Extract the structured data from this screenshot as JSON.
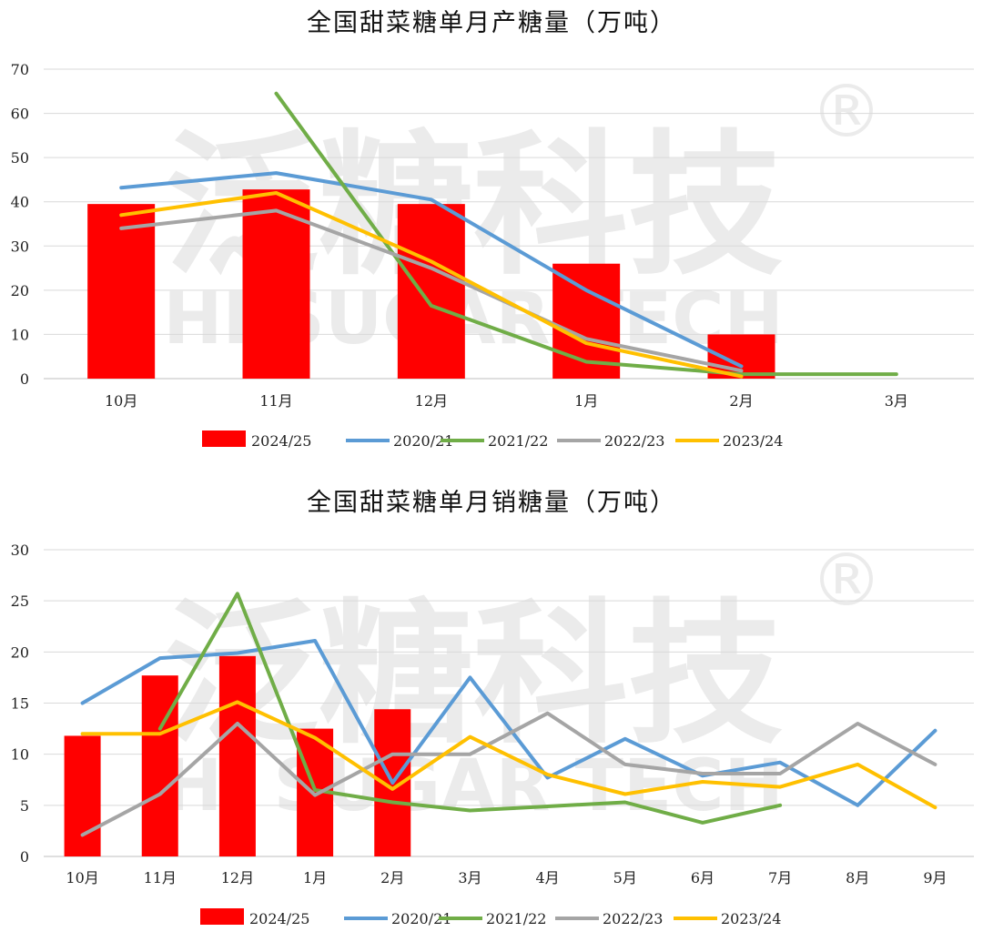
{
  "watermark": {
    "cn": "泛糖科技",
    "en": "HI SUGAR TECH",
    "mark": "®"
  },
  "chart_data": [
    {
      "type": "bar+line",
      "title": "全国甜菜糖单月产糖量（万吨）",
      "categories": [
        "10月",
        "11月",
        "12月",
        "1月",
        "2月",
        "3月"
      ],
      "ylim": [
        0,
        70
      ],
      "yticks": [
        0,
        10,
        20,
        30,
        40,
        50,
        60,
        70
      ],
      "grid": true,
      "legend": "bottom",
      "series": [
        {
          "name": "2024/25",
          "kind": "bar",
          "color": "#ff0000",
          "values": [
            39.5,
            42.8,
            39.5,
            26.0,
            10.0,
            null
          ]
        },
        {
          "name": "2020/21",
          "kind": "line",
          "color": "#5b9bd5",
          "values": [
            43.2,
            46.5,
            40.5,
            20.0,
            2.8,
            null
          ]
        },
        {
          "name": "2021/22",
          "kind": "line",
          "color": "#70ad47",
          "values": [
            null,
            64.5,
            16.5,
            3.8,
            1.0,
            1.0
          ]
        },
        {
          "name": "2022/23",
          "kind": "line",
          "color": "#a5a5a5",
          "values": [
            34.0,
            38.0,
            25.0,
            9.0,
            1.8,
            null
          ]
        },
        {
          "name": "2023/24",
          "kind": "line",
          "color": "#ffc000",
          "values": [
            37.0,
            42.0,
            26.5,
            8.0,
            0.5,
            null
          ]
        }
      ]
    },
    {
      "type": "bar+line",
      "title": "全国甜菜糖单月销糖量（万吨）",
      "categories": [
        "10月",
        "11月",
        "12月",
        "1月",
        "2月",
        "3月",
        "4月",
        "5月",
        "6月",
        "7月",
        "8月",
        "9月"
      ],
      "ylim": [
        0,
        30
      ],
      "yticks": [
        0,
        5,
        10,
        15,
        20,
        25,
        30
      ],
      "grid": true,
      "legend": "bottom",
      "series": [
        {
          "name": "2024/25",
          "kind": "bar",
          "color": "#ff0000",
          "values": [
            11.8,
            17.7,
            19.6,
            12.5,
            14.4,
            null,
            null,
            null,
            null,
            null,
            null,
            null
          ]
        },
        {
          "name": "2020/21",
          "kind": "line",
          "color": "#5b9bd5",
          "values": [
            15.0,
            19.4,
            19.9,
            21.1,
            7.2,
            17.5,
            7.7,
            11.5,
            7.9,
            9.2,
            5.0,
            12.3
          ]
        },
        {
          "name": "2021/22",
          "kind": "line",
          "color": "#70ad47",
          "values": [
            null,
            12.5,
            25.7,
            6.5,
            5.3,
            4.5,
            4.9,
            5.3,
            3.3,
            5.0,
            null,
            null
          ]
        },
        {
          "name": "2022/23",
          "kind": "line",
          "color": "#a5a5a5",
          "values": [
            2.1,
            6.1,
            13.0,
            6.0,
            10.0,
            10.0,
            14.0,
            9.0,
            8.1,
            8.1,
            13.0,
            9.0
          ]
        },
        {
          "name": "2023/24",
          "kind": "line",
          "color": "#ffc000",
          "values": [
            12.0,
            12.0,
            15.1,
            11.6,
            6.6,
            11.7,
            8.0,
            6.1,
            7.3,
            6.8,
            9.0,
            4.8
          ]
        }
      ]
    }
  ]
}
